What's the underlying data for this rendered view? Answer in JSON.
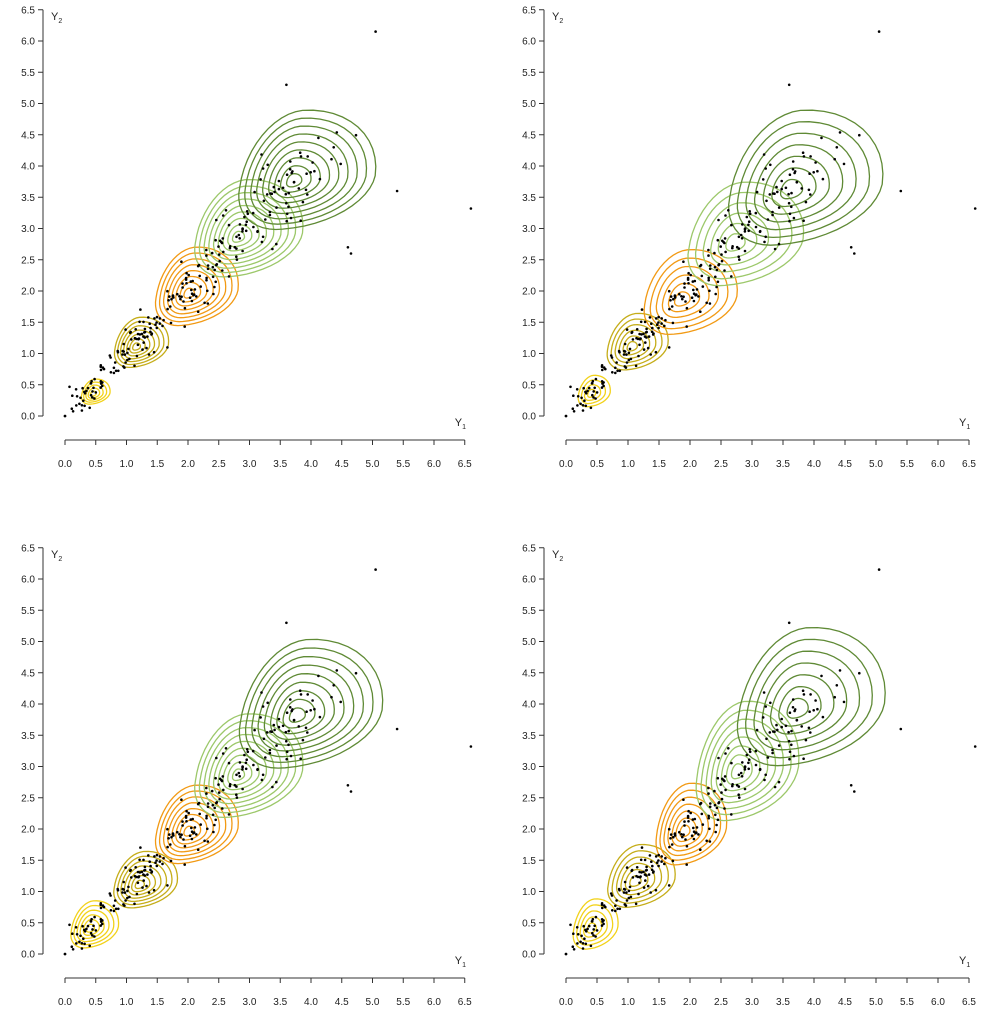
{
  "chart_data": [
    {
      "type": "scatter",
      "xlabel": "Y",
      "xlabel_sub": "1",
      "ylabel": "Y",
      "ylabel_sub": "2",
      "xlim": [
        0,
        6.5
      ],
      "ylim": [
        0,
        6.5
      ],
      "xticks": [
        "0.0",
        "0.5",
        "1.0",
        "1.5",
        "2.0",
        "2.5",
        "3.0",
        "3.5",
        "4.0",
        "4.5",
        "5.0",
        "5.5",
        "6.0",
        "6.5"
      ],
      "yticks": [
        "0.0",
        "0.5",
        "1.0",
        "1.5",
        "2.0",
        "2.5",
        "3.0",
        "3.5",
        "4.0",
        "4.5",
        "5.0",
        "5.5",
        "6.0",
        "6.5"
      ],
      "contour_groups": [
        {
          "cx": 0.45,
          "cy": 0.35,
          "w": 0.45,
          "h": 0.4,
          "color": "#f2d21a",
          "rings": 5
        },
        {
          "cx": 1.15,
          "cy": 1.1,
          "w": 0.85,
          "h": 0.8,
          "color": "#c5ad19",
          "rings": 7
        },
        {
          "cx": 2.0,
          "cy": 1.95,
          "w": 1.3,
          "h": 1.25,
          "color": "#f29a14",
          "rings": 8
        },
        {
          "cx": 2.8,
          "cy": 2.85,
          "w": 1.7,
          "h": 1.55,
          "color": "#9cc86a",
          "rings": 9
        },
        {
          "cx": 3.7,
          "cy": 3.75,
          "w": 2.15,
          "h": 1.9,
          "color": "#5f8a35",
          "rings": 9
        }
      ]
    },
    {
      "type": "scatter",
      "xlabel": "Y",
      "xlabel_sub": "1",
      "ylabel": "Y",
      "ylabel_sub": "2",
      "xlim": [
        0,
        6.5
      ],
      "ylim": [
        0,
        6.5
      ],
      "xticks": [
        "0.0",
        "0.5",
        "1.0",
        "1.5",
        "2.0",
        "2.5",
        "3.0",
        "3.5",
        "4.0",
        "4.5",
        "5.0",
        "5.5",
        "6.0",
        "6.5"
      ],
      "yticks": [
        "0.0",
        "0.5",
        "1.0",
        "1.5",
        "2.0",
        "2.5",
        "3.0",
        "3.5",
        "4.0",
        "4.5",
        "5.0",
        "5.5",
        "6.0",
        "6.5"
      ],
      "contour_groups": [
        {
          "cx": 0.4,
          "cy": 0.35,
          "w": 0.5,
          "h": 0.5,
          "color": "#f2d21a",
          "rings": 4
        },
        {
          "cx": 1.05,
          "cy": 1.1,
          "w": 0.95,
          "h": 0.9,
          "color": "#c5ad19",
          "rings": 6
        },
        {
          "cx": 1.85,
          "cy": 1.85,
          "w": 1.45,
          "h": 1.35,
          "color": "#f29a14",
          "rings": 6
        },
        {
          "cx": 2.7,
          "cy": 2.75,
          "w": 1.8,
          "h": 1.65,
          "color": "#9cc86a",
          "rings": 6
        },
        {
          "cx": 3.6,
          "cy": 3.6,
          "w": 2.4,
          "h": 2.15,
          "color": "#5f8a35",
          "rings": 7
        }
      ]
    },
    {
      "type": "scatter",
      "xlabel": "Y",
      "xlabel_sub": "1",
      "ylabel": "Y",
      "ylabel_sub": "2",
      "xlim": [
        0,
        6.5
      ],
      "ylim": [
        0,
        6.5
      ],
      "xticks": [
        "0.0",
        "0.5",
        "1.0",
        "1.5",
        "2.0",
        "2.5",
        "3.0",
        "3.5",
        "4.0",
        "4.5",
        "5.0",
        "5.5",
        "6.0",
        "6.5"
      ],
      "yticks": [
        "0.0",
        "0.5",
        "1.0",
        "1.5",
        "2.0",
        "2.5",
        "3.0",
        "3.5",
        "4.0",
        "4.5",
        "5.0",
        "5.5",
        "6.0",
        "6.5"
      ],
      "contour_groups": [
        {
          "cx": 0.4,
          "cy": 0.4,
          "w": 0.75,
          "h": 0.75,
          "color": "#f2d21a",
          "rings": 6
        },
        {
          "cx": 1.2,
          "cy": 1.1,
          "w": 1.0,
          "h": 0.9,
          "color": "#c5ad19",
          "rings": 7
        },
        {
          "cx": 2.0,
          "cy": 1.95,
          "w": 1.3,
          "h": 1.25,
          "color": "#f29a14",
          "rings": 8
        },
        {
          "cx": 2.8,
          "cy": 2.85,
          "w": 1.7,
          "h": 1.65,
          "color": "#9cc86a",
          "rings": 9
        },
        {
          "cx": 3.75,
          "cy": 3.8,
          "w": 2.25,
          "h": 2.05,
          "color": "#5f8a35",
          "rings": 9
        }
      ]
    },
    {
      "type": "scatter",
      "xlabel": "Y",
      "xlabel_sub": "1",
      "ylabel": "Y",
      "ylabel_sub": "2",
      "xlim": [
        0,
        6.5
      ],
      "ylim": [
        0,
        6.5
      ],
      "xticks": [
        "0.0",
        "0.5",
        "1.0",
        "1.5",
        "2.0",
        "2.5",
        "3.0",
        "3.5",
        "4.0",
        "4.5",
        "5.0",
        "5.5",
        "6.0",
        "6.5"
      ],
      "yticks": [
        "0.0",
        "0.5",
        "1.0",
        "1.5",
        "2.0",
        "2.5",
        "3.0",
        "3.5",
        "4.0",
        "4.5",
        "5.0",
        "5.5",
        "6.0",
        "6.5"
      ],
      "contour_groups": [
        {
          "cx": 0.4,
          "cy": 0.4,
          "w": 0.7,
          "h": 0.8,
          "color": "#f2d21a",
          "rings": 5
        },
        {
          "cx": 1.1,
          "cy": 1.15,
          "w": 1.05,
          "h": 1.0,
          "color": "#c5ad19",
          "rings": 6
        },
        {
          "cx": 1.9,
          "cy": 1.95,
          "w": 1.1,
          "h": 1.3,
          "color": "#f29a14",
          "rings": 7
        },
        {
          "cx": 2.75,
          "cy": 2.9,
          "w": 1.6,
          "h": 1.9,
          "color": "#9cc86a",
          "rings": 8
        },
        {
          "cx": 3.7,
          "cy": 3.9,
          "w": 2.3,
          "h": 2.2,
          "color": "#5f8a35",
          "rings": 7
        }
      ]
    }
  ]
}
